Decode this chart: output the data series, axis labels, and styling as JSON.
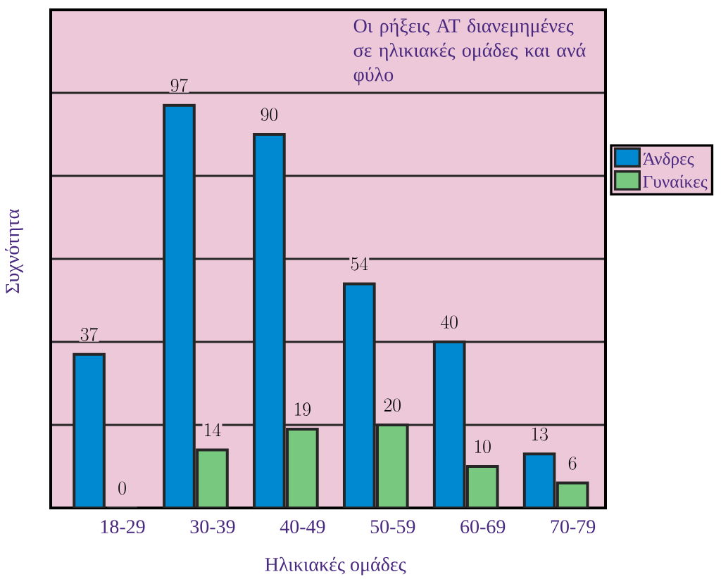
{
  "chart_data": {
    "type": "bar",
    "title": "Οι ρήξεις ΑΤ διανεμημένες σε ηλικιακές ομάδες και ανά φύλο",
    "xlabel": "Ηλικιακές ομάδες",
    "ylabel": "Συχνότητα",
    "categories": [
      "18-29",
      "30-39",
      "40-49",
      "50-59",
      "60-69",
      "70-79"
    ],
    "series": [
      {
        "name": "Άνδρες",
        "color": "#0088d0",
        "values": [
          37,
          97,
          90,
          54,
          40,
          13
        ]
      },
      {
        "name": "Γυναίκες",
        "color": "#78c880",
        "values": [
          0,
          14,
          19,
          20,
          10,
          6
        ]
      }
    ],
    "ylim": [
      0,
      120
    ],
    "yticks": [
      {
        "value": 20,
        "label": null
      },
      {
        "value": 40,
        "label": null
      },
      {
        "value": 60,
        "label": null
      },
      {
        "value": 80,
        "label": null
      },
      {
        "value": 100,
        "label": null
      }
    ],
    "grid": "y",
    "legend": "right",
    "data_labels": true
  }
}
